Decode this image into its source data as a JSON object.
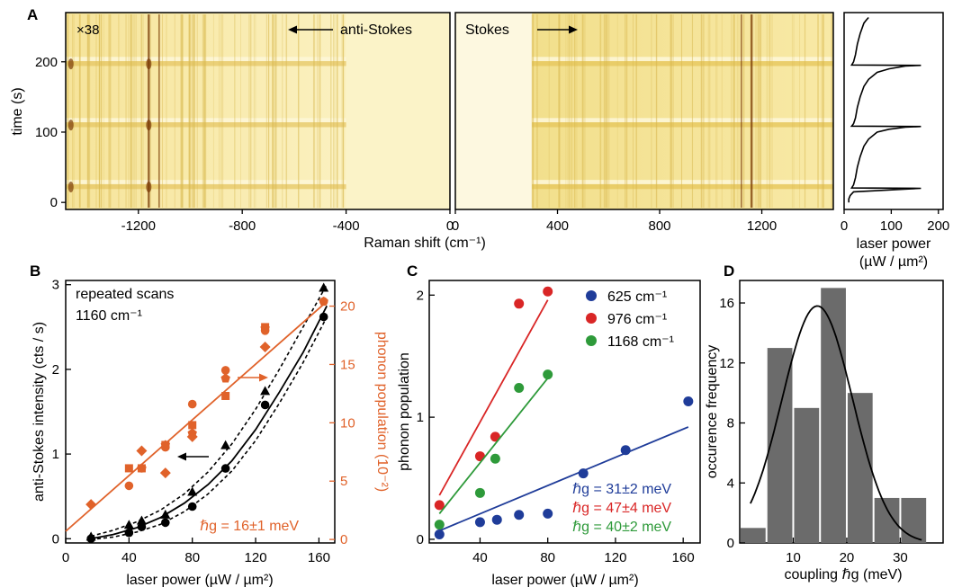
{
  "panels": {
    "A": {
      "label": "A",
      "ylabel": "time (s)",
      "xlabel": "Raman shift (cm⁻¹)",
      "scale_note": "×38",
      "antistokes_label": "anti-Stokes",
      "stokes_label": "Stokes",
      "laser_xlabel": "laser power",
      "laser_xlabel2": "(µW / µm²)"
    },
    "B": {
      "label": "B",
      "ylabel": "anti-Stokes intensity (cts / s)",
      "y2label": "phonon population (10⁻²)",
      "xlabel": "laser power (µW / µm²)",
      "annotation1": "repeated scans",
      "annotation2": "1160 cm⁻¹",
      "coupling": "ℏg = 16±1 meV"
    },
    "C": {
      "label": "C",
      "ylabel": "phonon population",
      "xlabel": "laser power (µW / µm²)",
      "legend": [
        "625 cm⁻¹",
        "976 cm⁻¹",
        "1168 cm⁻¹"
      ],
      "coupling": [
        "ℏg = 31±2 meV",
        "ℏg = 47±4 meV",
        "ℏg = 40±2 meV"
      ]
    },
    "D": {
      "label": "D",
      "ylabel": "occurence frequency",
      "xlabel": "coupling ℏg (meV)"
    }
  },
  "colors": {
    "orange": "#e0622a",
    "blue": "#1f3c99",
    "red": "#d92626",
    "green": "#2e9a3a",
    "bar": "#6b6b6b",
    "map_light": "#fbf3c4",
    "map_mid": "#e9cf6a",
    "map_dark": "#7a3b06"
  },
  "chart_data": [
    {
      "panel": "A",
      "type": "heatmap",
      "title": "",
      "xlabel": "Raman shift (cm⁻¹)",
      "ylabel": "time (s)",
      "x_ticks_left": [
        -1200,
        -800,
        -400,
        0
      ],
      "x_ticks_right": [
        0,
        400,
        800,
        1200
      ],
      "y_ticks": [
        0,
        100,
        200
      ],
      "xlim_antistokes": [
        -1480,
        0
      ],
      "xlim_stokes": [
        0,
        1480
      ],
      "ylim": [
        -10,
        270
      ],
      "bright_lines_cm": [
        -1160,
        -1120,
        1120,
        1160
      ],
      "power_cycle_restarts_s": [
        20,
        108,
        195
      ],
      "laser_power_profile": {
        "xlabel": "laser power (µW / µm²)",
        "x_ticks": [
          0,
          100,
          200
        ],
        "xlim": [
          0,
          210
        ],
        "time_s": [
          0,
          5,
          10,
          15,
          20,
          20.5,
          25,
          35,
          50,
          65,
          80,
          90,
          100,
          104,
          107,
          108,
          108.5,
          112,
          120,
          135,
          150,
          165,
          175,
          185,
          190,
          194,
          195,
          195.5,
          200,
          210,
          225,
          240,
          255,
          260,
          263
        ],
        "power": [
          10,
          10,
          13,
          20,
          163,
          16,
          20,
          24,
          28,
          34,
          42,
          52,
          70,
          95,
          130,
          163,
          16,
          20,
          24,
          28,
          34,
          42,
          52,
          70,
          95,
          130,
          163,
          16,
          20,
          24,
          28,
          34,
          42,
          48,
          52
        ]
      }
    },
    {
      "panel": "B",
      "type": "scatter",
      "title": "",
      "xlabel": "laser power (µW / µm²)",
      "ylabel": "anti-Stokes intensity (cts / s)",
      "y2label": "phonon population (10⁻²)",
      "xlim": [
        0,
        170
      ],
      "ylim": [
        -0.05,
        3.05
      ],
      "y2lim": [
        -0.3,
        22.2
      ],
      "x_ticks": [
        0,
        40,
        80,
        120,
        160
      ],
      "y_ticks": [
        0,
        1,
        2,
        3
      ],
      "y2_ticks": [
        0,
        5,
        10,
        15,
        20
      ],
      "intensity_circles": {
        "x": [
          16,
          40,
          48,
          63,
          80,
          101,
          126,
          163
        ],
        "y": [
          0.0,
          0.07,
          0.14,
          0.19,
          0.38,
          0.83,
          1.58,
          2.62
        ]
      },
      "intensity_triangles": {
        "x": [
          16,
          40,
          48,
          63,
          80,
          101,
          126,
          163
        ],
        "y": [
          0.02,
          0.16,
          0.21,
          0.28,
          0.55,
          1.1,
          1.74,
          2.96
        ]
      },
      "population_circles": {
        "x": [
          40,
          48,
          63,
          80,
          101,
          126,
          163
        ],
        "y": [
          4.6,
          6.1,
          7.9,
          11.6,
          14.5,
          17.9,
          20.4
        ]
      },
      "population_squares": {
        "x": [
          40,
          48,
          63,
          80,
          101,
          126
        ],
        "y": [
          6.1,
          6.1,
          8.1,
          9.8,
          12.3,
          18.2
        ]
      },
      "population_pentagons": {
        "x": [
          48,
          63,
          80,
          101,
          126,
          163
        ],
        "y": [
          6.1,
          8.1,
          9.1,
          13.8,
          18.1,
          20.4
        ]
      },
      "population_diamonds": {
        "x": [
          16,
          48,
          63,
          80,
          126
        ],
        "y": [
          3.0,
          7.6,
          5.7,
          8.8,
          16.5
        ]
      },
      "linear_fit": {
        "x": [
          0,
          165
        ],
        "y": [
          0.7,
          20.4
        ]
      },
      "cubic_fit": {
        "x": [
          16,
          30,
          45,
          60,
          75,
          90,
          105,
          120,
          135,
          150,
          165
        ],
        "y": [
          0.0,
          0.05,
          0.13,
          0.25,
          0.42,
          0.64,
          0.92,
          1.29,
          1.73,
          2.2,
          2.75
        ]
      },
      "dashed_fit_upper": {
        "x": [
          16,
          30,
          45,
          60,
          75,
          90,
          105,
          120,
          135,
          150,
          165
        ],
        "y": [
          0.03,
          0.1,
          0.2,
          0.34,
          0.53,
          0.79,
          1.12,
          1.53,
          2.0,
          2.5,
          3.0
        ]
      },
      "dashed_fit_lower": {
        "x": [
          16,
          30,
          45,
          60,
          75,
          90,
          105,
          120,
          135,
          150,
          165
        ],
        "y": [
          -0.01,
          0.02,
          0.08,
          0.17,
          0.32,
          0.53,
          0.8,
          1.16,
          1.6,
          2.08,
          2.62
        ]
      }
    },
    {
      "panel": "C",
      "type": "scatter",
      "title": "",
      "xlabel": "laser power (µW / µm²)",
      "ylabel": "phonon population",
      "xlim": [
        10,
        170
      ],
      "ylim": [
        -0.03,
        2.12
      ],
      "x_ticks": [
        40,
        80,
        120,
        160
      ],
      "y_ticks": [
        0,
        1,
        2
      ],
      "series": [
        {
          "name": "625 cm⁻¹",
          "x": [
            16,
            40,
            50,
            63,
            80,
            101,
            126,
            163
          ],
          "y": [
            0.04,
            0.14,
            0.16,
            0.2,
            0.21,
            0.54,
            0.73,
            1.13
          ],
          "fit": {
            "x": [
              16,
              163
            ],
            "y": [
              0.07,
              0.92
            ]
          }
        },
        {
          "name": "976 cm⁻¹",
          "x": [
            16,
            40,
            49,
            63,
            80
          ],
          "y": [
            0.28,
            0.68,
            0.84,
            1.93,
            2.03
          ],
          "fit": {
            "x": [
              16,
              80
            ],
            "y": [
              0.36,
              1.96
            ]
          }
        },
        {
          "name": "1168 cm⁻¹",
          "x": [
            16,
            40,
            49,
            63,
            80
          ],
          "y": [
            0.12,
            0.38,
            0.66,
            1.24,
            1.35
          ],
          "fit": {
            "x": [
              16,
              80
            ],
            "y": [
              0.21,
              1.32
            ]
          }
        }
      ]
    },
    {
      "panel": "D",
      "type": "bar",
      "title": "",
      "xlabel": "coupling ℏg (meV)",
      "ylabel": "occurence frequency",
      "bin_centers": [
        2.5,
        7.5,
        12.5,
        17.5,
        22.5,
        27.5,
        32.5
      ],
      "bin_width": 5,
      "values": [
        1,
        13,
        9,
        17,
        10,
        3,
        3
      ],
      "xlim": [
        0,
        38
      ],
      "ylim": [
        0,
        17.5
      ],
      "x_ticks": [
        10,
        20,
        30
      ],
      "y_ticks": [
        0,
        4,
        8,
        12,
        16
      ],
      "gaussian_fit": {
        "amplitude": 15.8,
        "center": 14.5,
        "sigma": 6.6,
        "x_range": [
          2,
          34
        ]
      }
    }
  ]
}
